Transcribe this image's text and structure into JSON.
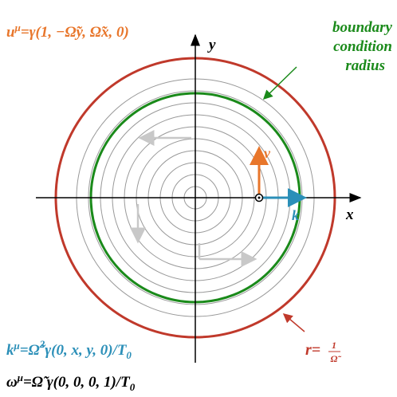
{
  "velocity_formula": [
    "u",
    "μ",
    "=γ(1, −Ω̃y, Ω̃x, 0)"
  ],
  "axes": {
    "x": "x",
    "y": "y"
  },
  "boundary_label": [
    "boundary",
    "condition",
    "radius"
  ],
  "vector_labels": {
    "v": "v⃗",
    "k": "k⃗"
  },
  "k_formula": [
    "k",
    "μ",
    "=Ω̃",
    "2",
    "γ(0, x, y, 0)/T",
    "0"
  ],
  "radius_label": [
    "r=",
    "1",
    "Ω̃"
  ],
  "omega_formula": [
    "ω",
    "μ",
    "=Ω̃ γ(0, 0, 0, 1)/T",
    "0"
  ]
}
